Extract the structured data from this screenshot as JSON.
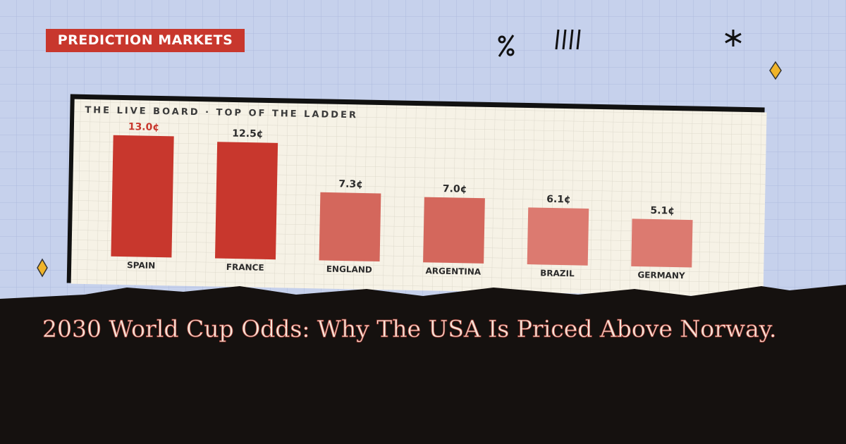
{
  "tag": "PREDICTION MARKETS",
  "headline": "2030 World Cup Odds: Why The USA Is Priced Above Norway.",
  "chart_data": {
    "type": "bar",
    "title": "THE LIVE BOARD · TOP OF THE LADDER",
    "categories": [
      "SPAIN",
      "FRANCE",
      "ENGLAND",
      "ARGENTINA",
      "BRAZIL",
      "GERMANY"
    ],
    "values": [
      13.0,
      12.5,
      7.3,
      7.0,
      6.1,
      5.1
    ],
    "value_labels": [
      "13.0¢",
      "12.5¢",
      "7.3¢",
      "7.0¢",
      "6.1¢",
      "5.1¢"
    ],
    "colors": [
      "#c8372d",
      "#c8372d",
      "#d4675c",
      "#d4675c",
      "#dc7a70",
      "#dc7a70"
    ],
    "highlight_index": 0
  }
}
